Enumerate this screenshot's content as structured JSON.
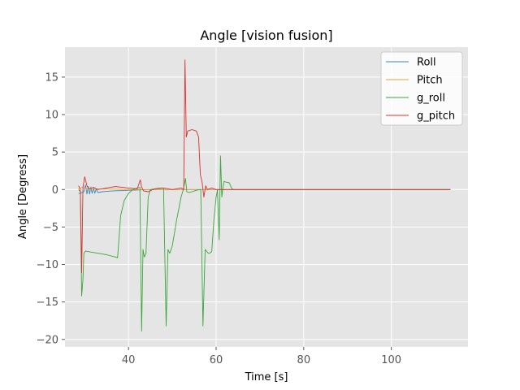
{
  "chart_data": {
    "type": "line",
    "title": "Angle [vision fusion]",
    "xlabel": "Time [s]",
    "ylabel": "Angle [Degress]",
    "xlim": [
      25.5,
      117.5
    ],
    "ylim": [
      -21,
      19
    ],
    "xticks": [
      40,
      60,
      80,
      100
    ],
    "yticks": [
      15,
      10,
      5,
      0,
      -5,
      -10,
      -15,
      -20
    ],
    "grid": true,
    "legend_position": "top-right",
    "colors": {
      "plot_bg": "#e5e5e5",
      "grid": "#ffffff",
      "Roll": "#348abd",
      "Pitch": "#e8a33b",
      "g_roll": "#3aa63a",
      "g_pitch": "#d9302c"
    },
    "series": [
      {
        "name": "Roll",
        "x": [
          28.6,
          29.0,
          29.4,
          29.8,
          30.2,
          30.5,
          30.8,
          31.1,
          31.4,
          31.7,
          32.0,
          32.3,
          32.6,
          33.0,
          34.0,
          36.0,
          38.0,
          40.0,
          43.0,
          46.0,
          50.0,
          55.0,
          60.0,
          64.0,
          70.0,
          80.0,
          90.0,
          100.0,
          113.5
        ],
        "y": [
          -0.5,
          -0.5,
          -0.4,
          -0.3,
          0.6,
          -0.6,
          0.4,
          -0.6,
          0.3,
          -0.5,
          0.2,
          -0.5,
          0.1,
          -0.4,
          -0.3,
          -0.2,
          -0.15,
          -0.1,
          -0.05,
          0.0,
          0.0,
          0.0,
          0.0,
          0.0,
          0.0,
          0.0,
          0.0,
          0.0,
          0.0
        ]
      },
      {
        "name": "Pitch",
        "x": [
          28.6,
          29.0,
          29.5,
          30.0,
          31.0,
          33.0,
          36.0,
          40.0,
          45.0,
          50.0,
          55.0,
          60.0,
          64.0,
          70.0,
          80.0,
          90.0,
          100.0,
          113.5
        ],
        "y": [
          0.1,
          0.2,
          0.3,
          0.2,
          0.1,
          0.1,
          0.05,
          0.0,
          0.0,
          0.0,
          0.0,
          0.0,
          0.0,
          0.0,
          0.0,
          0.0,
          0.0,
          0.0
        ]
      },
      {
        "name": "g_roll",
        "x": [
          28.6,
          29.0,
          29.3,
          29.6,
          29.8,
          30.2,
          31.0,
          33.0,
          35.0,
          37.0,
          37.5,
          38.2,
          39.0,
          40.0,
          41.0,
          42.0,
          42.6,
          43.0,
          43.3,
          43.6,
          44.0,
          44.5,
          45.0,
          46.0,
          47.0,
          48.0,
          48.6,
          49.0,
          49.4,
          50.0,
          51.0,
          52.0,
          52.5,
          53.0,
          53.3,
          53.8,
          54.5,
          55.5,
          56.5,
          57.0,
          57.5,
          57.8,
          58.2,
          58.5,
          59.0,
          59.5,
          60.0,
          60.3,
          60.7,
          61.0,
          61.3,
          61.5,
          61.8,
          62.2,
          63.0,
          63.6,
          64.0,
          70.0,
          80.0,
          90.0,
          100.0,
          113.5
        ],
        "y": [
          0.0,
          -0.3,
          -14.2,
          -12.0,
          -8.5,
          -8.2,
          -8.3,
          -8.5,
          -8.7,
          -9.0,
          -9.1,
          -3.5,
          -1.5,
          -0.5,
          0.0,
          0.2,
          0.3,
          -18.9,
          -8.0,
          -9.0,
          -8.5,
          -1.0,
          0.0,
          0.1,
          0.2,
          0.2,
          -18.2,
          -8.0,
          -8.5,
          -7.5,
          -4.0,
          -1.0,
          0.0,
          1.5,
          -0.3,
          -0.4,
          -0.3,
          -0.1,
          0.0,
          -18.2,
          -8.0,
          -8.2,
          -8.5,
          -8.5,
          -8.3,
          -4.0,
          -1.0,
          0.0,
          -6.7,
          4.5,
          -1.0,
          0.0,
          1.1,
          1.0,
          0.9,
          0.1,
          0.0,
          0.0,
          0.0,
          0.0,
          0.0,
          0.0
        ]
      },
      {
        "name": "g_pitch",
        "x": [
          28.6,
          29.0,
          29.3,
          29.6,
          30.0,
          30.5,
          31.0,
          32.0,
          33.0,
          35.0,
          37.0,
          40.0,
          42.0,
          42.7,
          43.0,
          43.5,
          44.5,
          46.0,
          48.0,
          50.0,
          52.0,
          52.6,
          52.9,
          53.2,
          53.5,
          54.5,
          55.5,
          56.0,
          56.4,
          56.8,
          57.2,
          57.6,
          58.0,
          59.0,
          60.0,
          62.0,
          64.0,
          70.0,
          80.0,
          90.0,
          100.0,
          113.5
        ],
        "y": [
          0.5,
          0.0,
          -11.1,
          0.3,
          1.7,
          0.5,
          0.1,
          0.3,
          0.0,
          0.2,
          0.4,
          0.2,
          0.1,
          1.3,
          0.3,
          -0.2,
          -0.3,
          0.1,
          0.2,
          0.0,
          0.2,
          0.0,
          17.3,
          7.0,
          7.8,
          8.0,
          7.8,
          7.0,
          2.0,
          1.0,
          -1.0,
          0.5,
          0.0,
          0.2,
          0.0,
          0.0,
          0.0,
          0.0,
          0.0,
          0.0,
          0.0,
          0.0
        ]
      }
    ]
  }
}
